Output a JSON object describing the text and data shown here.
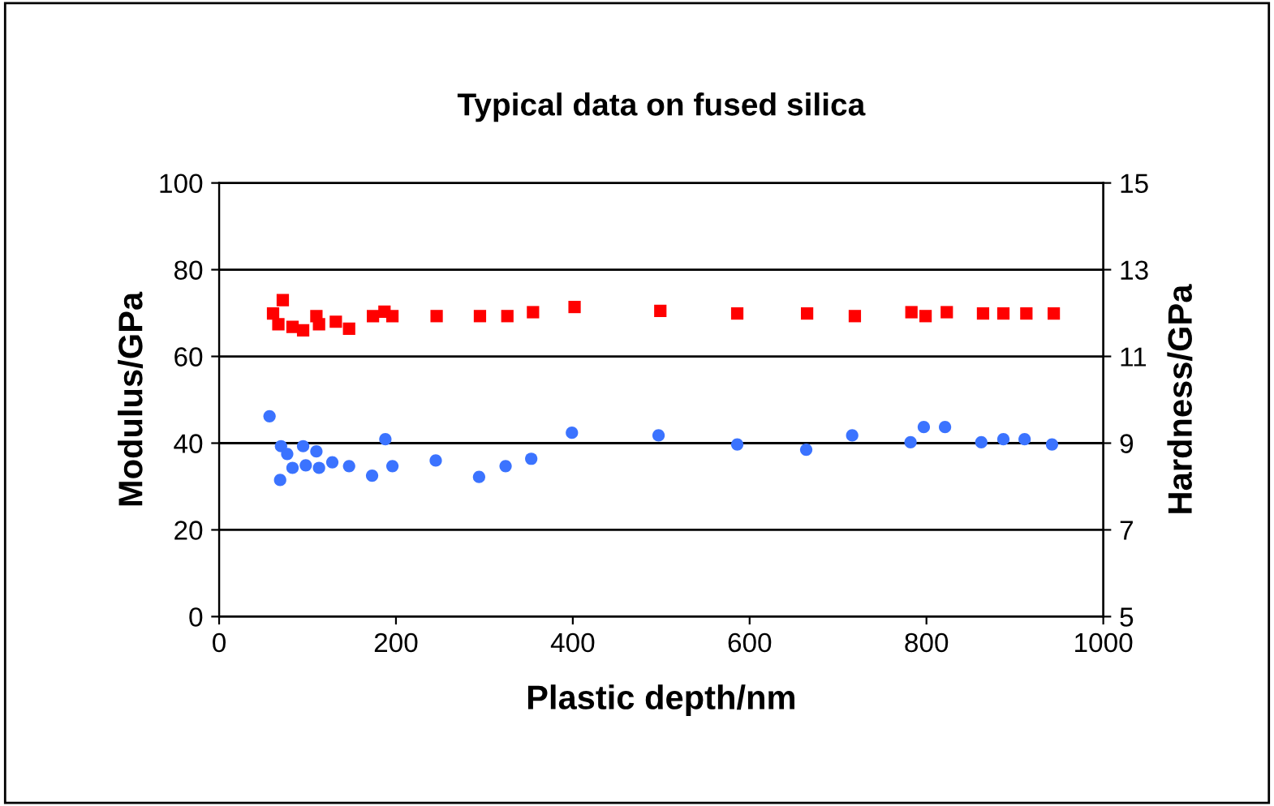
{
  "chart_data": {
    "type": "scatter",
    "title": "Typical data on fused silica",
    "xlabel": "Plastic depth/nm",
    "ylabel": "Modulus/GPa",
    "y2label": "Hardness/GPa",
    "xlim": [
      0,
      1000
    ],
    "xticks": [
      0,
      200,
      400,
      600,
      800,
      1000
    ],
    "ylim": [
      0,
      100
    ],
    "yticks": [
      0,
      20,
      40,
      60,
      80,
      100
    ],
    "y2lim": [
      5,
      15
    ],
    "y2ticks": [
      5,
      7,
      9,
      11,
      13,
      15
    ],
    "grid": "y",
    "legend": false,
    "series": [
      {
        "color": "#ff0000",
        "marker": "square",
        "x": [
          61,
          72,
          67,
          83,
          95,
          110,
          113,
          132,
          147,
          174,
          187,
          196,
          246,
          295,
          326,
          355,
          402,
          499,
          586,
          665,
          719,
          783,
          799,
          823,
          864,
          887,
          913,
          944
        ],
        "values": [
          69.9,
          73,
          67.4,
          66.8,
          66,
          69.3,
          67.4,
          68,
          66.4,
          69.3,
          70.3,
          69.3,
          69.3,
          69.3,
          69.3,
          70.2,
          71.4,
          70.5,
          69.9,
          69.9,
          69.3,
          70.2,
          69.3,
          70.2,
          69.9,
          69.9,
          69.9,
          69.9
        ]
      },
      {
        "color": "#3b73ff",
        "marker": "circle",
        "axis": "y2",
        "x": [
          57,
          70,
          69,
          77,
          83,
          95,
          98,
          110,
          113,
          128,
          147,
          173,
          188,
          196,
          245,
          294,
          324,
          353,
          399,
          497,
          586,
          664,
          716,
          782,
          797,
          821,
          862,
          887,
          911,
          942
        ],
        "values": [
          9.62,
          8.93,
          8.15,
          8.75,
          8.43,
          8.93,
          8.49,
          8.81,
          8.43,
          8.56,
          8.47,
          8.25,
          9.09,
          8.47,
          8.6,
          8.22,
          8.47,
          8.64,
          9.24,
          9.18,
          8.97,
          8.85,
          9.18,
          9.02,
          9.37,
          9.37,
          9.02,
          9.09,
          9.09,
          8.97
        ]
      }
    ]
  }
}
